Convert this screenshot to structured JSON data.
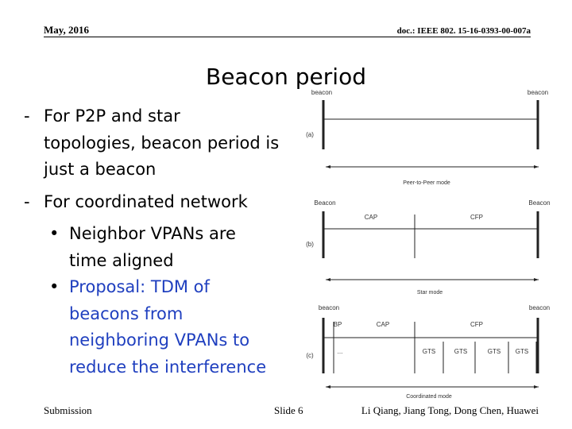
{
  "header": {
    "date": "May, 2016",
    "doc": "doc.: IEEE 802. 15-16-0393-00-007a"
  },
  "title": "Beacon period",
  "bullets": [
    {
      "marker": "-",
      "level": 1,
      "lines": [
        "For P2P and star",
        "topologies, beacon period is",
        "just a beacon"
      ]
    },
    {
      "marker": "-",
      "level": 1,
      "lines": [
        "For coordinated network"
      ]
    },
    {
      "marker": "•",
      "level": 2,
      "lines": [
        "Neighbor VPANs are",
        "time aligned"
      ]
    },
    {
      "marker": "•",
      "level": 2,
      "lines": [
        "Proposal: TDM of",
        "beacons from",
        "neighboring VPANs to",
        "reduce the interference"
      ]
    }
  ],
  "figure": {
    "a": {
      "label": "(a)",
      "left": "beacon",
      "right": "beacon",
      "mode": "Peer-to-Peer mode"
    },
    "b": {
      "label": "(b)",
      "left": "Beacon",
      "right": "Beacon",
      "cap": "CAP",
      "cfp": "CFP",
      "mode": "Star mode"
    },
    "c": {
      "label": "(c)",
      "left": "beacon",
      "right": "beacon",
      "bp": "BP",
      "cap": "CAP",
      "cfp": "CFP",
      "dots": "...",
      "gts": [
        "GTS",
        "GTS",
        "GTS",
        "GTS"
      ],
      "mode": "Coordinated mode"
    }
  },
  "footer": {
    "left": "Submission",
    "center": "Slide 6",
    "right": "Li Qiang, Jiang Tong, Dong Chen, Huawei"
  }
}
